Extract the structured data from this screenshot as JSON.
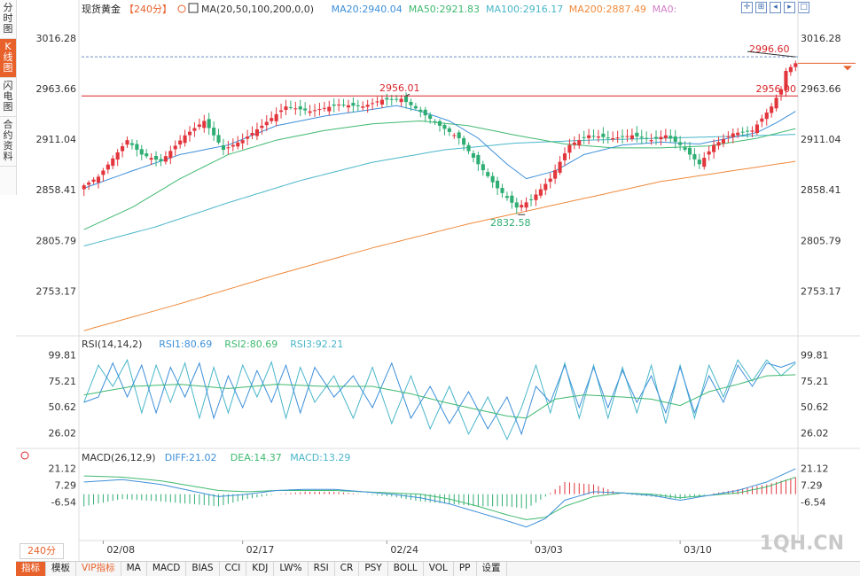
{
  "instrument": "现货黄金",
  "period": "240分",
  "sidebar": {
    "items": [
      "分时图",
      "K线图",
      "闪电图",
      "合约资料"
    ],
    "active": 1
  },
  "headers": {
    "ma": [
      {
        "text": "MA(20,50,100,200,0,0)",
        "color": "#333333"
      },
      {
        "text": "MA20:2940.04",
        "color": "#3d8fd9"
      },
      {
        "text": "MA50:2921.83",
        "color": "#3fb970"
      },
      {
        "text": "MA100:2916.17",
        "color": "#49b6c9"
      },
      {
        "text": "MA200:2887.49",
        "color": "#f08a3c"
      },
      {
        "text": "MA0:",
        "color": "#d27fc8"
      }
    ],
    "rsi": [
      {
        "text": "RSI(14,14,2)",
        "color": "#333333"
      },
      {
        "text": "RSI1:80.69",
        "color": "#3d8fd9"
      },
      {
        "text": "RSI2:80.69",
        "color": "#3fb970"
      },
      {
        "text": "RSI3:92.21",
        "color": "#49b6c9"
      }
    ],
    "macd": [
      {
        "text": "MACD(26,12,9)",
        "color": "#333333"
      },
      {
        "text": "DIFF:21.02",
        "color": "#3d8fd9"
      },
      {
        "text": "DEA:14.37",
        "color": "#3fb970"
      },
      {
        "text": "MACD:13.29",
        "color": "#49b6c9"
      }
    ]
  },
  "toolbar": [
    "指标",
    "模板",
    "VIP指标",
    "MA",
    "MACD",
    "BIAS",
    "CCI",
    "KDJ",
    "LW%",
    "RSI",
    "CR",
    "PSY",
    "BOLL",
    "VOL",
    "PP",
    "设置"
  ],
  "watermark": "1QH.CN",
  "colors": {
    "up": "#e2353c",
    "down": "#2fae73",
    "ma20": "#3d8fd9",
    "ma50": "#3fb970",
    "ma100": "#49b6c9",
    "ma200": "#f08a3c",
    "accent": "#e8612b"
  },
  "chart_data": {
    "type": "candlestick",
    "x_ticks": [
      "02/08",
      "02/17",
      "02/24",
      "03/03",
      "03/10"
    ],
    "x_tick_bars": [
      4,
      33,
      63,
      93,
      124
    ],
    "price_axis": [
      "3016.28",
      "2963.66",
      "2911.04",
      "2858.41",
      "2805.79",
      "2753.17"
    ],
    "price_range": [
      2713,
      3029
    ],
    "annotations": {
      "high": {
        "label": "2996.60",
        "value": 2996.6,
        "bar": 148
      },
      "prev_high": {
        "label": "2956.01",
        "value": 2956.01,
        "bar": 67
      },
      "low": {
        "label": "2832.58",
        "value": 2832.58,
        "bar": 91
      },
      "hline": {
        "label": "2956.00",
        "value": 2956.0
      },
      "last_price": 2990
    },
    "anchors": {
      "close": [
        [
          0,
          2863
        ],
        [
          3,
          2872
        ],
        [
          9,
          2910
        ],
        [
          12,
          2895
        ],
        [
          16,
          2888
        ],
        [
          21,
          2915
        ],
        [
          25,
          2930
        ],
        [
          29,
          2900
        ],
        [
          33,
          2910
        ],
        [
          37,
          2925
        ],
        [
          42,
          2945
        ],
        [
          47,
          2940
        ],
        [
          53,
          2947
        ],
        [
          58,
          2945
        ],
        [
          62,
          2952
        ],
        [
          66,
          2953
        ],
        [
          69,
          2943
        ],
        [
          74,
          2925
        ],
        [
          78,
          2912
        ],
        [
          82,
          2885
        ],
        [
          86,
          2860
        ],
        [
          90,
          2840
        ],
        [
          93,
          2848
        ],
        [
          97,
          2870
        ],
        [
          101,
          2905
        ],
        [
          105,
          2915
        ],
        [
          110,
          2912
        ],
        [
          114,
          2915
        ],
        [
          118,
          2910
        ],
        [
          121,
          2915
        ],
        [
          124,
          2905
        ],
        [
          128,
          2885
        ],
        [
          131,
          2905
        ],
        [
          135,
          2917
        ],
        [
          139,
          2920
        ],
        [
          143,
          2945
        ],
        [
          145,
          2963
        ],
        [
          146,
          2982
        ],
        [
          148,
          2990
        ]
      ],
      "ma20": [
        [
          0,
          2860
        ],
        [
          10,
          2878
        ],
        [
          20,
          2895
        ],
        [
          30,
          2905
        ],
        [
          40,
          2925
        ],
        [
          50,
          2935
        ],
        [
          60,
          2942
        ],
        [
          65,
          2946
        ],
        [
          70,
          2940
        ],
        [
          76,
          2930
        ],
        [
          82,
          2912
        ],
        [
          88,
          2885
        ],
        [
          92,
          2870
        ],
        [
          98,
          2878
        ],
        [
          104,
          2895
        ],
        [
          112,
          2905
        ],
        [
          120,
          2908
        ],
        [
          128,
          2906
        ],
        [
          134,
          2912
        ],
        [
          140,
          2918
        ],
        [
          144,
          2928
        ],
        [
          148,
          2940
        ]
      ],
      "ma50": [
        [
          0,
          2817
        ],
        [
          10,
          2840
        ],
        [
          20,
          2870
        ],
        [
          30,
          2895
        ],
        [
          40,
          2910
        ],
        [
          50,
          2920
        ],
        [
          60,
          2927
        ],
        [
          70,
          2930
        ],
        [
          80,
          2925
        ],
        [
          90,
          2915
        ],
        [
          100,
          2906
        ],
        [
          110,
          2902
        ],
        [
          120,
          2902
        ],
        [
          130,
          2904
        ],
        [
          140,
          2912
        ],
        [
          148,
          2922
        ]
      ],
      "ma100": [
        [
          0,
          2800
        ],
        [
          15,
          2820
        ],
        [
          30,
          2845
        ],
        [
          45,
          2868
        ],
        [
          60,
          2887
        ],
        [
          75,
          2900
        ],
        [
          90,
          2907
        ],
        [
          105,
          2910
        ],
        [
          120,
          2912
        ],
        [
          135,
          2914
        ],
        [
          148,
          2916
        ]
      ],
      "ma200": [
        [
          0,
          2712
        ],
        [
          20,
          2740
        ],
        [
          40,
          2770
        ],
        [
          60,
          2798
        ],
        [
          80,
          2823
        ],
        [
          100,
          2845
        ],
        [
          120,
          2867
        ],
        [
          140,
          2882
        ],
        [
          148,
          2888
        ]
      ],
      "rsi1": [
        [
          0,
          55
        ],
        [
          3,
          60
        ],
        [
          6,
          92
        ],
        [
          9,
          60
        ],
        [
          12,
          90
        ],
        [
          15,
          45
        ],
        [
          18,
          88
        ],
        [
          21,
          60
        ],
        [
          24,
          92
        ],
        [
          27,
          40
        ],
        [
          30,
          80
        ],
        [
          33,
          50
        ],
        [
          36,
          85
        ],
        [
          39,
          55
        ],
        [
          42,
          90
        ],
        [
          45,
          45
        ],
        [
          48,
          88
        ],
        [
          52,
          60
        ],
        [
          56,
          80
        ],
        [
          60,
          50
        ],
        [
          64,
          92
        ],
        [
          68,
          40
        ],
        [
          72,
          70
        ],
        [
          76,
          35
        ],
        [
          80,
          65
        ],
        [
          84,
          30
        ],
        [
          88,
          60
        ],
        [
          91,
          25
        ],
        [
          94,
          70
        ],
        [
          97,
          55
        ],
        [
          100,
          90
        ],
        [
          103,
          50
        ],
        [
          106,
          88
        ],
        [
          109,
          50
        ],
        [
          112,
          85
        ],
        [
          115,
          55
        ],
        [
          118,
          80
        ],
        [
          121,
          45
        ],
        [
          124,
          88
        ],
        [
          127,
          45
        ],
        [
          130,
          80
        ],
        [
          133,
          55
        ],
        [
          136,
          90
        ],
        [
          139,
          70
        ],
        [
          142,
          92
        ],
        [
          145,
          88
        ],
        [
          148,
          93
        ]
      ],
      "rsi2": [
        [
          0,
          62
        ],
        [
          10,
          70
        ],
        [
          20,
          72
        ],
        [
          30,
          68
        ],
        [
          40,
          72
        ],
        [
          50,
          70
        ],
        [
          60,
          70
        ],
        [
          68,
          63
        ],
        [
          75,
          55
        ],
        [
          82,
          48
        ],
        [
          88,
          42
        ],
        [
          92,
          40
        ],
        [
          98,
          58
        ],
        [
          104,
          62
        ],
        [
          112,
          60
        ],
        [
          118,
          58
        ],
        [
          124,
          52
        ],
        [
          130,
          65
        ],
        [
          136,
          72
        ],
        [
          142,
          80
        ],
        [
          148,
          81
        ]
      ],
      "rsi3": [
        [
          0,
          55
        ],
        [
          3,
          90
        ],
        [
          6,
          70
        ],
        [
          9,
          95
        ],
        [
          12,
          45
        ],
        [
          15,
          90
        ],
        [
          18,
          55
        ],
        [
          21,
          92
        ],
        [
          24,
          40
        ],
        [
          27,
          88
        ],
        [
          30,
          45
        ],
        [
          33,
          90
        ],
        [
          36,
          60
        ],
        [
          39,
          93
        ],
        [
          42,
          40
        ],
        [
          45,
          88
        ],
        [
          48,
          55
        ],
        [
          52,
          80
        ],
        [
          56,
          40
        ],
        [
          60,
          88
        ],
        [
          64,
          35
        ],
        [
          68,
          80
        ],
        [
          72,
          30
        ],
        [
          76,
          70
        ],
        [
          80,
          25
        ],
        [
          84,
          60
        ],
        [
          88,
          20
        ],
        [
          91,
          50
        ],
        [
          94,
          90
        ],
        [
          97,
          45
        ],
        [
          100,
          92
        ],
        [
          103,
          40
        ],
        [
          106,
          90
        ],
        [
          109,
          40
        ],
        [
          112,
          88
        ],
        [
          115,
          45
        ],
        [
          118,
          90
        ],
        [
          121,
          35
        ],
        [
          124,
          90
        ],
        [
          127,
          40
        ],
        [
          130,
          90
        ],
        [
          133,
          60
        ],
        [
          136,
          95
        ],
        [
          139,
          75
        ],
        [
          142,
          95
        ],
        [
          145,
          80
        ],
        [
          148,
          92
        ]
      ],
      "diff": [
        [
          0,
          10
        ],
        [
          8,
          12
        ],
        [
          16,
          8
        ],
        [
          22,
          3
        ],
        [
          28,
          -2
        ],
        [
          34,
          0
        ],
        [
          40,
          3
        ],
        [
          46,
          4
        ],
        [
          52,
          4
        ],
        [
          58,
          2
        ],
        [
          64,
          0
        ],
        [
          70,
          -3
        ],
        [
          76,
          -8
        ],
        [
          82,
          -15
        ],
        [
          88,
          -22
        ],
        [
          92,
          -27
        ],
        [
          96,
          -20
        ],
        [
          100,
          -5
        ],
        [
          106,
          2
        ],
        [
          112,
          1
        ],
        [
          118,
          -1
        ],
        [
          124,
          -5
        ],
        [
          130,
          -1
        ],
        [
          136,
          3
        ],
        [
          142,
          10
        ],
        [
          148,
          21
        ]
      ],
      "dea": [
        [
          0,
          15
        ],
        [
          8,
          14
        ],
        [
          16,
          11
        ],
        [
          22,
          7
        ],
        [
          28,
          3
        ],
        [
          34,
          2
        ],
        [
          40,
          3
        ],
        [
          46,
          3
        ],
        [
          52,
          3
        ],
        [
          58,
          2
        ],
        [
          64,
          1
        ],
        [
          70,
          0
        ],
        [
          76,
          -4
        ],
        [
          82,
          -10
        ],
        [
          88,
          -17
        ],
        [
          92,
          -21
        ],
        [
          96,
          -19
        ],
        [
          100,
          -10
        ],
        [
          106,
          -2
        ],
        [
          112,
          1
        ],
        [
          118,
          0
        ],
        [
          124,
          -3
        ],
        [
          130,
          -1
        ],
        [
          136,
          1
        ],
        [
          142,
          6
        ],
        [
          148,
          14
        ]
      ]
    },
    "rsi_axis": [
      "99.81",
      "75.21",
      "50.62",
      "26.02"
    ],
    "rsi_range": [
      14,
      106
    ],
    "macd_axis": [
      "21.12",
      "7.29",
      "-6.54"
    ],
    "macd_range": [
      -36,
      26
    ],
    "n_bars": 149
  }
}
